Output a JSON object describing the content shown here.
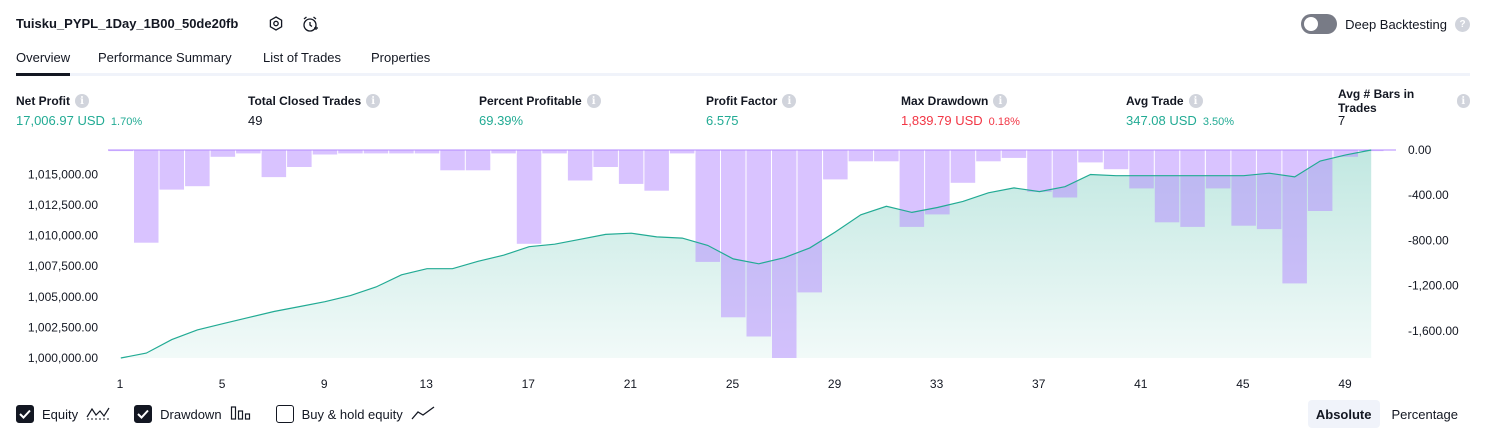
{
  "header": {
    "title": "Tuisku_PYPL_1Day_1B00_50de20fb",
    "deep_backtesting_label": "Deep Backtesting",
    "deep_backtesting_on": false,
    "help_glyph": "?"
  },
  "tabs": [
    {
      "label": "Overview",
      "active": true
    },
    {
      "label": "Performance Summary",
      "active": false
    },
    {
      "label": "List of Trades",
      "active": false
    },
    {
      "label": "Properties",
      "active": false
    }
  ],
  "info_glyph": "i",
  "metrics": [
    {
      "label": "Net Profit",
      "value": "17,006.97 USD",
      "pct": "1.70%",
      "color": "green"
    },
    {
      "label": "Total Closed Trades",
      "value": "49",
      "pct": "",
      "color": "default"
    },
    {
      "label": "Percent Profitable",
      "value": "69.39%",
      "pct": "",
      "color": "green"
    },
    {
      "label": "Profit Factor",
      "value": "6.575",
      "pct": "",
      "color": "green"
    },
    {
      "label": "Max Drawdown",
      "value": "1,839.79 USD",
      "pct": "0.18%",
      "color": "red"
    },
    {
      "label": "Avg Trade",
      "value": "347.08 USD",
      "pct": "3.50%",
      "color": "green"
    },
    {
      "label": "Avg # Bars in Trades",
      "value": "7",
      "pct": "",
      "color": "default"
    }
  ],
  "chart_data": {
    "type": "line+bar",
    "x": [
      1,
      2,
      3,
      4,
      5,
      6,
      7,
      8,
      9,
      10,
      11,
      12,
      13,
      14,
      15,
      16,
      17,
      18,
      19,
      20,
      21,
      22,
      23,
      24,
      25,
      26,
      27,
      28,
      29,
      30,
      31,
      32,
      33,
      34,
      35,
      36,
      37,
      38,
      39,
      40,
      41,
      42,
      43,
      44,
      45,
      46,
      47,
      48,
      49,
      50
    ],
    "x_ticks": [
      "1",
      "5",
      "9",
      "13",
      "17",
      "21",
      "25",
      "29",
      "33",
      "37",
      "41",
      "45",
      "49"
    ],
    "left_axis": {
      "ticks": [
        "1,015,000.00",
        "1,012,500.00",
        "1,010,000.00",
        "1,007,500.00",
        "1,005,000.00",
        "1,002,500.00",
        "1,000,000.00"
      ],
      "range": [
        1000000,
        1017000
      ]
    },
    "right_axis": {
      "ticks": [
        "0.00",
        "-400.00",
        "-800.00",
        "-1,200.00",
        "-1,600.00"
      ],
      "range": [
        -1840,
        0
      ]
    },
    "series": [
      {
        "kind": "equity",
        "color": "#22ab94",
        "values": [
          1000000,
          1000400,
          1001500,
          1002300,
          1002800,
          1003300,
          1003800,
          1004200,
          1004600,
          1005100,
          1005800,
          1006800,
          1007300,
          1007300,
          1007900,
          1008400,
          1009100,
          1009300,
          1009700,
          1010100,
          1010200,
          1009900,
          1009800,
          1009200,
          1008100,
          1007700,
          1008200,
          1009000,
          1010300,
          1011700,
          1012400,
          1011900,
          1012300,
          1012800,
          1013500,
          1013900,
          1013600,
          1014000,
          1015000,
          1014900,
          1014900,
          1014900,
          1014900,
          1014900,
          1014900,
          1015100,
          1014800,
          1016100,
          1016600,
          1017000
        ]
      },
      {
        "kind": "drawdown",
        "color": "#b388ff",
        "values": [
          -10,
          -820,
          -350,
          -320,
          -60,
          -30,
          -240,
          -150,
          -40,
          -30,
          -30,
          -30,
          -30,
          -180,
          -180,
          -30,
          -830,
          -30,
          -270,
          -150,
          -300,
          -360,
          -30,
          -990,
          -1480,
          -1650,
          -1840,
          -1260,
          -260,
          -100,
          -100,
          -680,
          -570,
          -290,
          -100,
          -70,
          -370,
          -420,
          -110,
          -170,
          -340,
          -640,
          -680,
          -340,
          -670,
          -700,
          -1180,
          -540,
          -60,
          -10
        ]
      }
    ]
  },
  "legend": [
    {
      "label": "Equity",
      "checked": true,
      "icon": "equity-wave-icon"
    },
    {
      "label": "Drawdown",
      "checked": true,
      "icon": "drawdown-bars-icon"
    },
    {
      "label": "Buy & hold equity",
      "checked": false,
      "icon": "buy-hold-line-icon"
    }
  ],
  "mode": [
    {
      "label": "Absolute",
      "active": true
    },
    {
      "label": "Percentage",
      "active": false
    }
  ]
}
